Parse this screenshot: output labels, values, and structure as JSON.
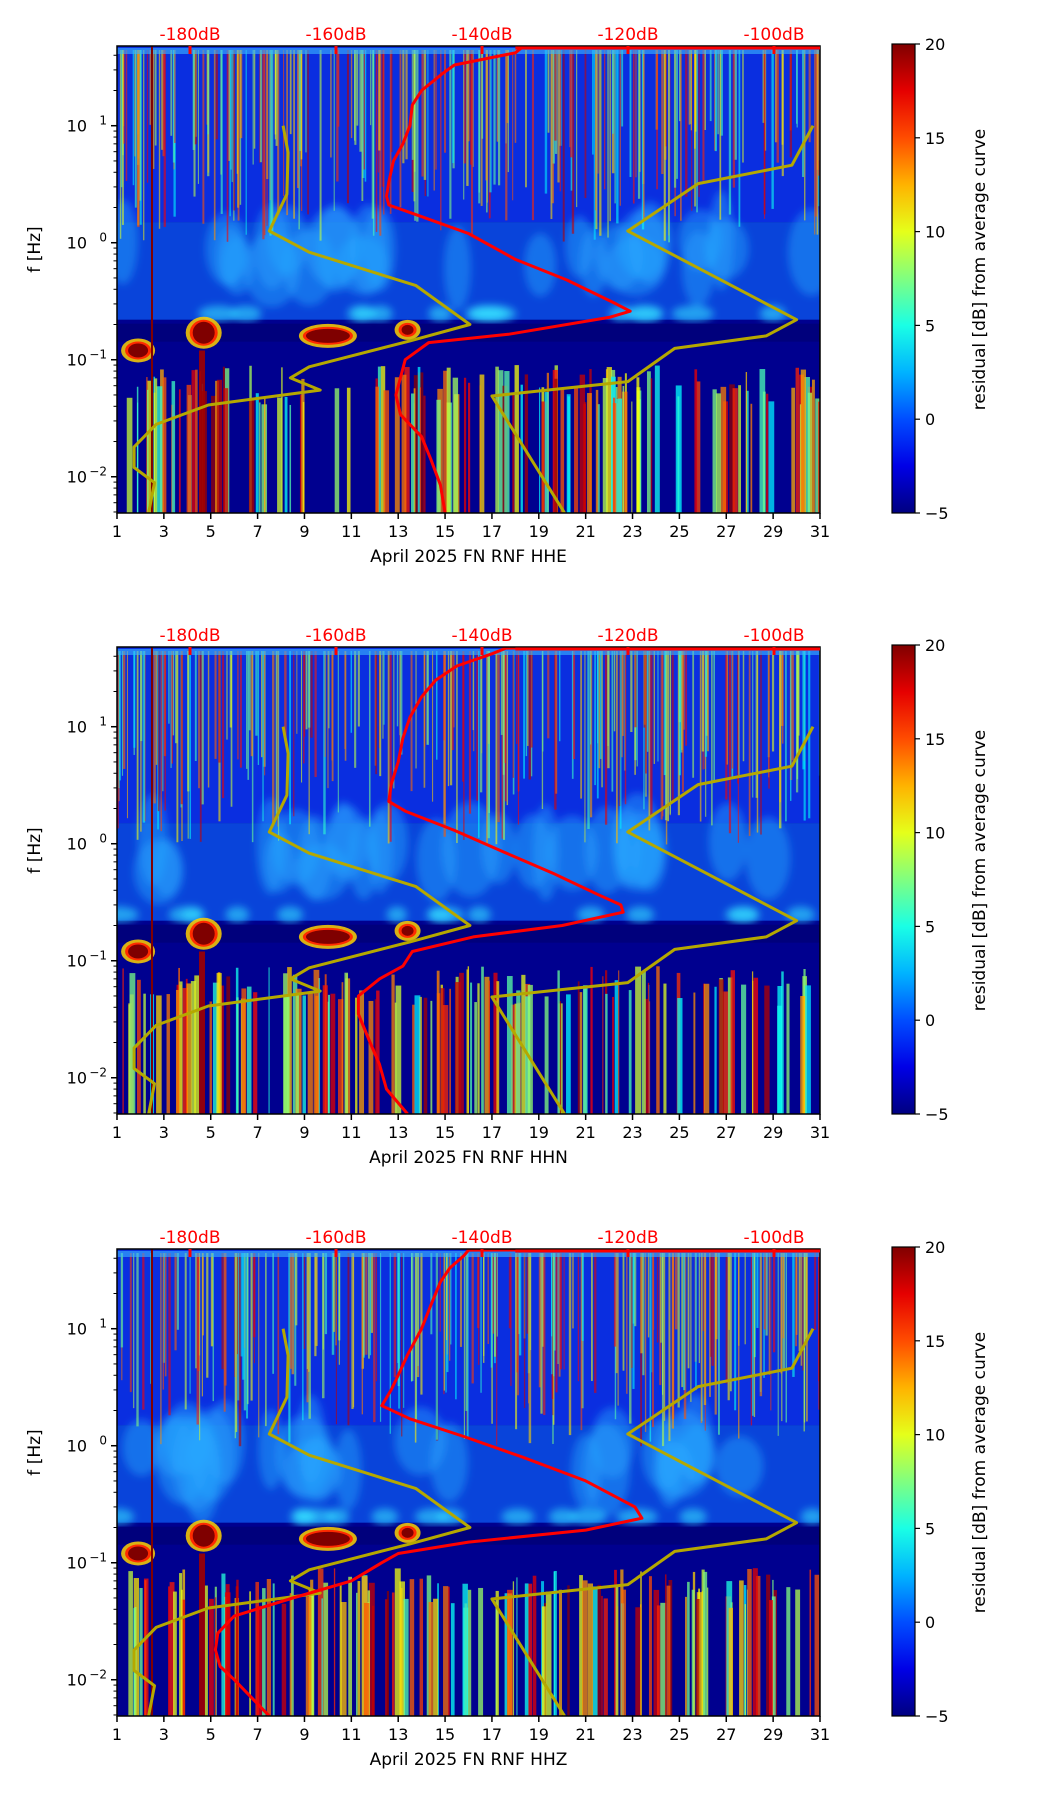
{
  "chart_data": [
    {
      "type": "heatmap",
      "title": "",
      "xlabel": "April 2025 FN RNF  HHE",
      "ylabel": "f [Hz]",
      "xlim": [
        1,
        31
      ],
      "ylim": [
        0.0049,
        48
      ],
      "yscale": "log",
      "xticks": [
        "1",
        "3",
        "5",
        "7",
        "9",
        "11",
        "13",
        "15",
        "17",
        "19",
        "21",
        "23",
        "25",
        "27",
        "29",
        "31"
      ],
      "yticks": [
        {
          "base": "10",
          "exp": "1"
        },
        {
          "base": "10",
          "exp": "0"
        },
        {
          "base": "10",
          "exp": "−1"
        },
        {
          "base": "10",
          "exp": "−2"
        }
      ],
      "top_axis_labels": [
        "-180dB",
        "-160dB",
        "-140dB",
        "-120dB",
        "-100dB"
      ],
      "colorbar": {
        "label": "residual [dB] from average curve",
        "ticks": [
          "20",
          "15",
          "10",
          "5",
          "0",
          "−5"
        ],
        "range": [
          -5,
          20
        ],
        "colormap": "jet"
      },
      "series": [
        {
          "name": "low noise model",
          "color": "#b5a800",
          "points": [
            [
              8.09,
              10
            ],
            [
              8.3,
              5.9
            ],
            [
              8.25,
              2.6
            ],
            [
              7.5,
              1.26
            ],
            [
              9.2,
              0.83
            ],
            [
              13.76,
              0.43
            ],
            [
              16.06,
              0.2
            ],
            [
              13.5,
              0.145
            ],
            [
              9.2,
              0.087
            ],
            [
              8.4,
              0.07
            ],
            [
              9.67,
              0.055
            ],
            [
              4.9,
              0.041
            ],
            [
              2.67,
              0.028
            ],
            [
              1.73,
              0.018
            ],
            [
              1.73,
              0.012
            ],
            [
              2.6,
              0.0089
            ],
            [
              2.35,
              0.0049
            ]
          ]
        },
        {
          "name": "high noise model",
          "color": "#b5a800",
          "points": [
            [
              30.7,
              10
            ],
            [
              29.8,
              4.6
            ],
            [
              25.8,
              3.2
            ],
            [
              22.8,
              1.26
            ],
            [
              30.0,
              0.22
            ],
            [
              28.7,
              0.16
            ],
            [
              24.8,
              0.125
            ],
            [
              22.8,
              0.065
            ],
            [
              17.0,
              0.049
            ],
            [
              20.1,
              0.0049
            ]
          ]
        },
        {
          "name": "average PSD",
          "color": "#ff0000",
          "points": [
            [
              31,
              48
            ],
            [
              18.3,
              47
            ],
            [
              18.0,
              42
            ],
            [
              15.4,
              33
            ],
            [
              14.9,
              28
            ],
            [
              14.0,
              20
            ],
            [
              13.6,
              15
            ],
            [
              13.5,
              10
            ],
            [
              13.2,
              7
            ],
            [
              12.8,
              5
            ],
            [
              12.6,
              3.3
            ],
            [
              12.5,
              2.5
            ],
            [
              12.6,
              2.1
            ],
            [
              13.9,
              1.7
            ],
            [
              16.0,
              1.2
            ],
            [
              18.0,
              0.72
            ],
            [
              20.2,
              0.48
            ],
            [
              22.3,
              0.3
            ],
            [
              22.9,
              0.26
            ],
            [
              22.0,
              0.23
            ],
            [
              17.7,
              0.165
            ],
            [
              14.3,
              0.14
            ],
            [
              13.3,
              0.1
            ],
            [
              12.9,
              0.05
            ],
            [
              13.1,
              0.034
            ],
            [
              14.0,
              0.022
            ],
            [
              14.4,
              0.014
            ],
            [
              14.8,
              0.0085
            ],
            [
              15.0,
              0.0049
            ]
          ]
        }
      ]
    },
    {
      "type": "heatmap",
      "title": "",
      "xlabel": "April 2025 FN RNF  HHN",
      "ylabel": "f [Hz]",
      "xlim": [
        1,
        31
      ],
      "ylim": [
        0.0049,
        48
      ],
      "yscale": "log",
      "xticks": [
        "1",
        "3",
        "5",
        "7",
        "9",
        "11",
        "13",
        "15",
        "17",
        "19",
        "21",
        "23",
        "25",
        "27",
        "29",
        "31"
      ],
      "yticks": [
        {
          "base": "10",
          "exp": "1"
        },
        {
          "base": "10",
          "exp": "0"
        },
        {
          "base": "10",
          "exp": "−1"
        },
        {
          "base": "10",
          "exp": "−2"
        }
      ],
      "top_axis_labels": [
        "-180dB",
        "-160dB",
        "-140dB",
        "-120dB",
        "-100dB"
      ],
      "colorbar": {
        "label": "residual [dB] from average curve",
        "ticks": [
          "20",
          "15",
          "10",
          "5",
          "0",
          "−5"
        ],
        "range": [
          -5,
          20
        ],
        "colormap": "jet"
      },
      "series": [
        {
          "name": "low noise model",
          "color": "#b5a800",
          "points": [
            [
              8.09,
              10
            ],
            [
              8.3,
              5.9
            ],
            [
              8.25,
              2.6
            ],
            [
              7.5,
              1.26
            ],
            [
              9.2,
              0.83
            ],
            [
              13.76,
              0.43
            ],
            [
              16.06,
              0.2
            ],
            [
              13.5,
              0.145
            ],
            [
              9.2,
              0.087
            ],
            [
              8.4,
              0.07
            ],
            [
              9.67,
              0.055
            ],
            [
              4.9,
              0.041
            ],
            [
              2.67,
              0.028
            ],
            [
              1.73,
              0.018
            ],
            [
              1.73,
              0.012
            ],
            [
              2.6,
              0.0089
            ],
            [
              2.35,
              0.0049
            ]
          ]
        },
        {
          "name": "high noise model",
          "color": "#b5a800",
          "points": [
            [
              30.7,
              10
            ],
            [
              29.8,
              4.6
            ],
            [
              25.8,
              3.2
            ],
            [
              22.8,
              1.26
            ],
            [
              30.0,
              0.22
            ],
            [
              28.7,
              0.16
            ],
            [
              24.8,
              0.125
            ],
            [
              22.8,
              0.065
            ],
            [
              17.0,
              0.049
            ],
            [
              20.1,
              0.0049
            ]
          ]
        },
        {
          "name": "average PSD",
          "color": "#ff0000",
          "points": [
            [
              31,
              48
            ],
            [
              17.6,
              47
            ],
            [
              17.0,
              42
            ],
            [
              15.5,
              33
            ],
            [
              14.6,
              25
            ],
            [
              14.0,
              18
            ],
            [
              13.5,
              12
            ],
            [
              13.2,
              8
            ],
            [
              13.0,
              5
            ],
            [
              12.7,
              3.2
            ],
            [
              12.6,
              2.3
            ],
            [
              13.3,
              1.9
            ],
            [
              15.4,
              1.3
            ],
            [
              17.5,
              0.85
            ],
            [
              19.6,
              0.56
            ],
            [
              21.5,
              0.37
            ],
            [
              22.5,
              0.3
            ],
            [
              22.6,
              0.26
            ],
            [
              20.0,
              0.2
            ],
            [
              16.2,
              0.16
            ],
            [
              13.6,
              0.12
            ],
            [
              13.2,
              0.09
            ],
            [
              12.2,
              0.07
            ],
            [
              11.3,
              0.05
            ],
            [
              11.3,
              0.035
            ],
            [
              11.8,
              0.02
            ],
            [
              12.2,
              0.013
            ],
            [
              12.5,
              0.008
            ],
            [
              13.4,
              0.0049
            ]
          ]
        }
      ]
    },
    {
      "type": "heatmap",
      "title": "",
      "xlabel": "April 2025 FN RNF  HHZ",
      "ylabel": "f [Hz]",
      "xlim": [
        1,
        31
      ],
      "ylim": [
        0.0049,
        48
      ],
      "yscale": "log",
      "xticks": [
        "1",
        "3",
        "5",
        "7",
        "9",
        "11",
        "13",
        "15",
        "17",
        "19",
        "21",
        "23",
        "25",
        "27",
        "29",
        "31"
      ],
      "yticks": [
        {
          "base": "10",
          "exp": "1"
        },
        {
          "base": "10",
          "exp": "0"
        },
        {
          "base": "10",
          "exp": "−1"
        },
        {
          "base": "10",
          "exp": "−2"
        }
      ],
      "top_axis_labels": [
        "-180dB",
        "-160dB",
        "-140dB",
        "-120dB",
        "-100dB"
      ],
      "colorbar": {
        "label": "residual [dB] from average curve",
        "ticks": [
          "20",
          "15",
          "10",
          "5",
          "0",
          "−5"
        ],
        "range": [
          -5,
          20
        ],
        "colormap": "jet"
      },
      "series": [
        {
          "name": "low noise model",
          "color": "#b5a800",
          "points": [
            [
              8.09,
              10
            ],
            [
              8.3,
              5.9
            ],
            [
              8.25,
              2.6
            ],
            [
              7.5,
              1.26
            ],
            [
              9.2,
              0.83
            ],
            [
              13.76,
              0.43
            ],
            [
              16.06,
              0.2
            ],
            [
              13.5,
              0.145
            ],
            [
              9.2,
              0.087
            ],
            [
              8.4,
              0.07
            ],
            [
              9.67,
              0.055
            ],
            [
              4.9,
              0.041
            ],
            [
              2.67,
              0.028
            ],
            [
              1.73,
              0.018
            ],
            [
              1.73,
              0.012
            ],
            [
              2.6,
              0.0089
            ],
            [
              2.35,
              0.0049
            ]
          ]
        },
        {
          "name": "high noise model",
          "color": "#b5a800",
          "points": [
            [
              30.7,
              10
            ],
            [
              29.8,
              4.6
            ],
            [
              25.8,
              3.2
            ],
            [
              22.8,
              1.26
            ],
            [
              30.0,
              0.22
            ],
            [
              28.7,
              0.16
            ],
            [
              24.8,
              0.125
            ],
            [
              22.8,
              0.065
            ],
            [
              17.0,
              0.049
            ],
            [
              20.1,
              0.0049
            ]
          ]
        },
        {
          "name": "average PSD",
          "color": "#ff0000",
          "points": [
            [
              31,
              48
            ],
            [
              16.0,
              47
            ],
            [
              15.8,
              42
            ],
            [
              15.2,
              33
            ],
            [
              14.8,
              25
            ],
            [
              14.4,
              16
            ],
            [
              14.0,
              10
            ],
            [
              13.4,
              6
            ],
            [
              13.0,
              4
            ],
            [
              12.7,
              3
            ],
            [
              12.3,
              2.2
            ],
            [
              13.5,
              1.7
            ],
            [
              15.8,
              1.2
            ],
            [
              18.3,
              0.8
            ],
            [
              21.0,
              0.5
            ],
            [
              23.1,
              0.3
            ],
            [
              23.4,
              0.24
            ],
            [
              21.0,
              0.19
            ],
            [
              16.0,
              0.15
            ],
            [
              13.0,
              0.12
            ],
            [
              12.3,
              0.1
            ],
            [
              11.0,
              0.07
            ],
            [
              8.5,
              0.05
            ],
            [
              6.0,
              0.035
            ],
            [
              5.3,
              0.025
            ],
            [
              5.2,
              0.018
            ],
            [
              5.4,
              0.013
            ],
            [
              6.0,
              0.01
            ],
            [
              7.5,
              0.0049
            ]
          ]
        }
      ]
    }
  ]
}
